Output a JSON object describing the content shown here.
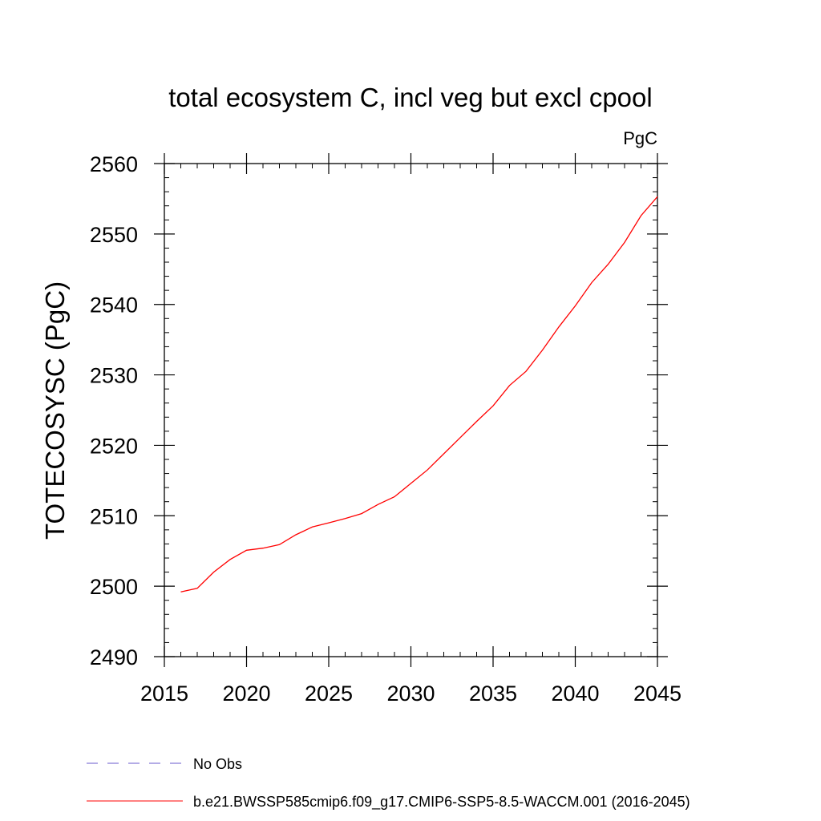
{
  "chart_data": {
    "type": "line",
    "title": "total ecosystem C, incl veg but excl cpool",
    "units_label": "PgC",
    "ylabel": "TOTECOSYSC  (PgC)",
    "xlabel": "",
    "xlim": [
      2015,
      2045
    ],
    "ylim": [
      2490,
      2560
    ],
    "x_ticks": [
      2015,
      2020,
      2025,
      2030,
      2035,
      2040,
      2045
    ],
    "y_ticks": [
      2490,
      2500,
      2510,
      2520,
      2530,
      2540,
      2550,
      2560
    ],
    "x_minor_step": 1,
    "y_minor_step": 2,
    "grid": false,
    "legend_placement": "bottom",
    "series": [
      {
        "name": "b.e21.BWSSP585cmip6.f09_g17.CMIP6-SSP5-8.5-WACCM.001 (2016-2045)",
        "color": "#ff0000",
        "style": "solid",
        "x": [
          2016,
          2017,
          2018,
          2019,
          2020,
          2021,
          2022,
          2023,
          2024,
          2025,
          2026,
          2027,
          2028,
          2029,
          2030,
          2031,
          2032,
          2033,
          2034,
          2035,
          2036,
          2037,
          2038,
          2039,
          2040,
          2041,
          2042,
          2043,
          2044,
          2045
        ],
        "values": [
          2499.2,
          2499.7,
          2502.0,
          2503.8,
          2505.1,
          2505.4,
          2505.9,
          2507.3,
          2508.4,
          2509.0,
          2509.6,
          2510.3,
          2511.6,
          2512.7,
          2514.6,
          2516.5,
          2518.8,
          2521.1,
          2523.4,
          2525.6,
          2528.5,
          2530.5,
          2533.5,
          2536.8,
          2539.8,
          2543.1,
          2545.7,
          2548.8,
          2552.6,
          2555.3
        ]
      }
    ],
    "legend": [
      {
        "label": "No Obs",
        "color": "#6a5acd",
        "style": "dashed"
      },
      {
        "label": "b.e21.BWSSP585cmip6.f09_g17.CMIP6-SSP5-8.5-WACCM.001 (2016-2045)",
        "color": "#ff0000",
        "style": "solid"
      }
    ]
  }
}
